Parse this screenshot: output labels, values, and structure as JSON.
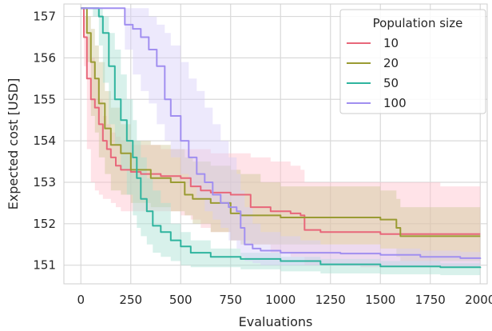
{
  "chart_data": {
    "type": "line",
    "xlabel": "Evaluations",
    "ylabel": "Expected cost [USD]",
    "xlim": [
      -85,
      2035
    ],
    "ylim": [
      150.55,
      157.3
    ],
    "xticks": [
      0,
      250,
      500,
      750,
      1000,
      1250,
      1500,
      1750,
      2000
    ],
    "yticks": [
      151,
      152,
      153,
      154,
      155,
      156,
      157
    ],
    "grid": true,
    "legend": {
      "title": "Population size",
      "placement": "top-right"
    },
    "series": [
      {
        "name": "10",
        "color": "#e8677a",
        "band_color": "#ffc0cb",
        "x": [
          0,
          15,
          30,
          50,
          70,
          90,
          110,
          130,
          150,
          175,
          200,
          250,
          300,
          400,
          500,
          550,
          600,
          650,
          750,
          850,
          950,
          1050,
          1100,
          1120,
          1200,
          1400,
          1500,
          1600,
          1700,
          1800,
          2000
        ],
        "mean": [
          157.2,
          156.5,
          155.5,
          155.0,
          154.8,
          154.4,
          154.0,
          153.8,
          153.6,
          153.4,
          153.3,
          153.25,
          153.2,
          153.15,
          153.1,
          152.9,
          152.8,
          152.75,
          152.7,
          152.4,
          152.3,
          152.25,
          152.2,
          151.85,
          151.8,
          151.8,
          151.75,
          151.75,
          151.75,
          151.75,
          151.75
        ],
        "upper": [
          157.2,
          157.0,
          156.5,
          156.0,
          155.5,
          155.0,
          154.6,
          154.4,
          154.2,
          154.1,
          154.0,
          153.9,
          153.9,
          153.8,
          153.8,
          153.8,
          153.8,
          153.7,
          153.7,
          153.6,
          153.5,
          153.4,
          153.3,
          153.0,
          153.0,
          153.0,
          153.0,
          153.0,
          153.0,
          152.9,
          152.9
        ],
        "lower": [
          157.2,
          155.8,
          153.8,
          153.0,
          152.8,
          152.7,
          152.6,
          152.6,
          152.5,
          152.4,
          152.3,
          152.3,
          152.3,
          152.3,
          152.2,
          152.1,
          151.9,
          151.8,
          151.6,
          151.5,
          151.3,
          151.2,
          151.2,
          151.0,
          151.0,
          150.95,
          150.95,
          150.95,
          150.95,
          150.95,
          150.95
        ]
      },
      {
        "name": "20",
        "color": "#9a9b33",
        "band_color": "#cfc79a",
        "x": [
          0,
          30,
          50,
          70,
          90,
          120,
          150,
          200,
          250,
          350,
          450,
          520,
          560,
          650,
          750,
          800,
          900,
          1000,
          1100,
          1300,
          1500,
          1580,
          1600,
          2000
        ],
        "mean": [
          157.2,
          156.6,
          155.9,
          155.5,
          154.9,
          154.3,
          153.9,
          153.7,
          153.3,
          153.1,
          153.0,
          152.7,
          152.6,
          152.5,
          152.25,
          152.2,
          152.2,
          152.15,
          152.15,
          152.15,
          152.1,
          151.9,
          151.7,
          151.7
        ],
        "upper": [
          157.2,
          157.0,
          156.7,
          156.3,
          155.9,
          155.2,
          154.8,
          154.4,
          154.0,
          153.9,
          153.8,
          153.6,
          153.5,
          153.4,
          153.3,
          153.2,
          153.0,
          152.9,
          152.9,
          152.9,
          152.8,
          152.6,
          152.4,
          152.3
        ],
        "lower": [
          157.2,
          155.9,
          154.6,
          154.2,
          153.6,
          153.2,
          152.8,
          152.7,
          152.5,
          152.4,
          152.3,
          152.2,
          152.0,
          151.8,
          151.6,
          151.5,
          151.5,
          151.5,
          151.5,
          151.5,
          151.4,
          151.2,
          151.1,
          151.1
        ]
      },
      {
        "name": "50",
        "color": "#2fb49e",
        "band_color": "#a8e0d2",
        "x": [
          0,
          60,
          90,
          110,
          140,
          170,
          200,
          230,
          260,
          280,
          300,
          330,
          360,
          400,
          450,
          500,
          550,
          650,
          800,
          1000,
          1200,
          1500,
          1800,
          2000
        ],
        "mean": [
          157.2,
          157.2,
          157.0,
          156.6,
          155.8,
          155.0,
          154.5,
          154.0,
          153.6,
          153.1,
          152.6,
          152.3,
          151.95,
          151.8,
          151.6,
          151.45,
          151.3,
          151.2,
          151.15,
          151.1,
          151.02,
          150.97,
          150.95,
          150.93
        ],
        "upper": [
          157.2,
          157.2,
          157.2,
          157.0,
          156.6,
          156.2,
          155.6,
          155.0,
          154.5,
          154.0,
          153.6,
          153.1,
          152.8,
          152.5,
          152.0,
          151.8,
          151.6,
          151.4,
          151.3,
          151.2,
          151.15,
          151.1,
          151.05,
          151.03
        ],
        "lower": [
          157.2,
          157.0,
          156.3,
          155.4,
          154.4,
          153.9,
          153.3,
          152.7,
          152.2,
          151.9,
          151.7,
          151.5,
          151.3,
          151.2,
          151.1,
          151.0,
          150.95,
          150.95,
          150.9,
          150.85,
          150.8,
          150.78,
          150.76,
          150.75
        ]
      },
      {
        "name": "100",
        "color": "#a18ff0",
        "band_color": "#d8cef8",
        "x": [
          0,
          200,
          220,
          260,
          300,
          340,
          380,
          420,
          450,
          500,
          540,
          580,
          620,
          660,
          700,
          740,
          780,
          800,
          820,
          860,
          900,
          1000,
          1100,
          1200,
          1300,
          1500,
          1700,
          1900,
          2000
        ],
        "mean": [
          157.2,
          157.2,
          156.8,
          156.7,
          156.5,
          156.2,
          155.8,
          155.0,
          154.6,
          154.0,
          153.6,
          153.2,
          153.0,
          152.7,
          152.5,
          152.4,
          152.3,
          151.9,
          151.5,
          151.4,
          151.35,
          151.3,
          151.3,
          151.3,
          151.28,
          151.25,
          151.2,
          151.17,
          151.15
        ],
        "upper": [
          157.2,
          157.2,
          157.2,
          157.2,
          157.2,
          157.0,
          156.8,
          156.6,
          156.3,
          155.9,
          155.5,
          155.2,
          154.8,
          154.4,
          154.0,
          153.6,
          153.2,
          152.8,
          152.4,
          152.0,
          151.8,
          151.7,
          151.6,
          151.5,
          151.5,
          151.4,
          151.35,
          151.32,
          151.3
        ],
        "lower": [
          157.2,
          157.2,
          156.2,
          155.6,
          155.2,
          154.9,
          154.4,
          154.0,
          153.6,
          153.2,
          152.9,
          152.6,
          152.3,
          152.1,
          151.9,
          151.6,
          151.4,
          151.2,
          151.1,
          151.05,
          151.0,
          151.0,
          151.0,
          151.0,
          150.98,
          150.96,
          150.95,
          150.95,
          150.95
        ]
      }
    ]
  }
}
